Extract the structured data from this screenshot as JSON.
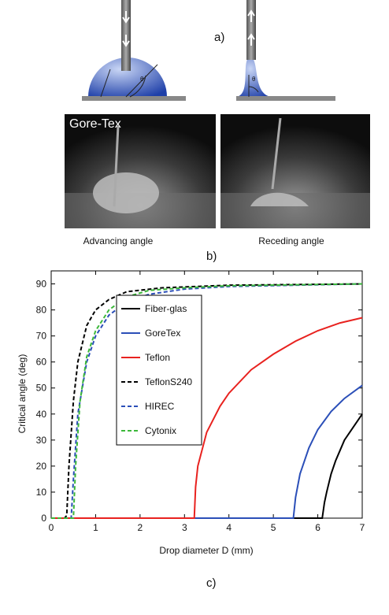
{
  "figure": {
    "label_a": "a)",
    "photo_label": "Gore-Tex",
    "caption_left": "Advancing  angle",
    "caption_right": "Receding angle",
    "label_b": "b)",
    "label_c": "c)"
  },
  "chart_data": {
    "type": "line",
    "y_label": "Critical angle (deg)",
    "x_label": "Drop diameter D (mm)",
    "xlim": [
      0,
      7
    ],
    "xticks": [
      0,
      1,
      2,
      3,
      4,
      5,
      6,
      7
    ],
    "ylim": [
      0,
      95
    ],
    "yticks": [
      0,
      10,
      20,
      30,
      40,
      50,
      60,
      70,
      80,
      90
    ],
    "legend": "upper-left",
    "series": [
      {
        "name": "Fiber-glas",
        "color": "#000000",
        "dashed": false,
        "x": [
          0,
          6.1,
          6.15,
          6.2,
          6.3,
          6.4,
          6.5,
          6.6,
          6.8,
          7
        ],
        "values": [
          0,
          0,
          6,
          10,
          17,
          22,
          26,
          30,
          35,
          40
        ]
      },
      {
        "name": "GoreTex",
        "color": "#2b4fb8",
        "dashed": false,
        "x": [
          0,
          5.45,
          5.5,
          5.6,
          5.8,
          6,
          6.3,
          6.6,
          7
        ],
        "values": [
          0,
          0,
          8,
          17,
          27,
          34,
          41,
          46,
          51
        ]
      },
      {
        "name": "Teflon",
        "color": "#e8221f",
        "dashed": false,
        "x": [
          0,
          3.22,
          3.25,
          3.3,
          3.5,
          3.8,
          4,
          4.5,
          5,
          5.5,
          6,
          6.5,
          7
        ],
        "values": [
          0,
          0,
          12,
          20,
          33,
          43,
          48,
          57,
          63,
          68,
          72,
          75,
          77
        ]
      },
      {
        "name": "TeflonS240",
        "color": "#000000",
        "dashed": true,
        "x": [
          0,
          0.3,
          0.35,
          0.4,
          0.5,
          0.6,
          0.8,
          1,
          1.3,
          1.7,
          2.5,
          4,
          7
        ],
        "values": [
          0,
          0,
          1,
          20,
          45,
          60,
          74,
          80,
          84,
          87,
          88.5,
          89.5,
          90
        ]
      },
      {
        "name": "HIREC",
        "color": "#2b4fb8",
        "dashed": true,
        "x": [
          0,
          0.45,
          0.5,
          0.6,
          0.8,
          1,
          1.3,
          1.7,
          2.2,
          3,
          4,
          7
        ],
        "values": [
          0,
          0,
          15,
          40,
          60,
          70,
          78,
          83,
          86,
          88,
          89,
          90
        ]
      },
      {
        "name": "Cytonix",
        "color": "#3cb83a",
        "dashed": true,
        "x": [
          0,
          0.5,
          0.55,
          0.65,
          0.8,
          1,
          1.3,
          1.7,
          2.2,
          3,
          4,
          7
        ],
        "values": [
          0,
          0,
          20,
          45,
          62,
          72,
          80,
          85,
          87.5,
          88.5,
          89.3,
          90
        ]
      }
    ]
  }
}
